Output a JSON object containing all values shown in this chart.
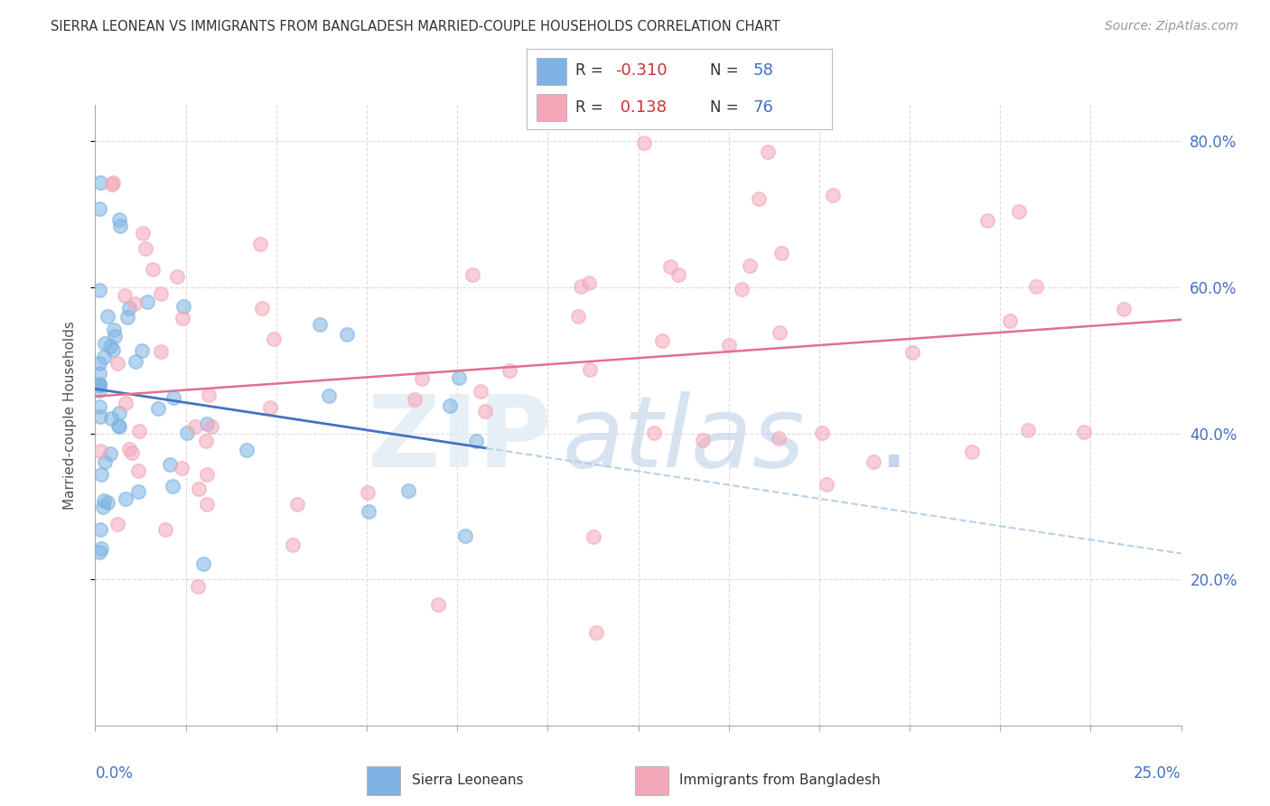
{
  "title": "SIERRA LEONEAN VS IMMIGRANTS FROM BANGLADESH MARRIED-COUPLE HOUSEHOLDS CORRELATION CHART",
  "source": "Source: ZipAtlas.com",
  "ylabel": "Married-couple Households",
  "color_blue": "#7EB3E3",
  "color_blue_line": "#4472C4",
  "color_pink": "#F4A7B9",
  "color_pink_line": "#E07090",
  "color_dashed": "#B8D0E8",
  "background_color": "#FFFFFF",
  "blue_r": -0.31,
  "blue_n": 58,
  "pink_r": 0.138,
  "pink_n": 76,
  "xlim": [
    0.0,
    0.25
  ],
  "ylim": [
    0.0,
    0.85
  ],
  "right_yticks": [
    0.2,
    0.4,
    0.6,
    0.8
  ],
  "right_yticklabels": [
    "20.0%",
    "40.0%",
    "60.0%",
    "80.0%"
  ],
  "grid_color": "#CCCCCC",
  "title_color": "#333333",
  "source_color": "#999999",
  "axis_label_color": "#4472C4",
  "watermark_zip_color": "#E0E8F0",
  "watermark_atlas_color": "#C8D8EC"
}
